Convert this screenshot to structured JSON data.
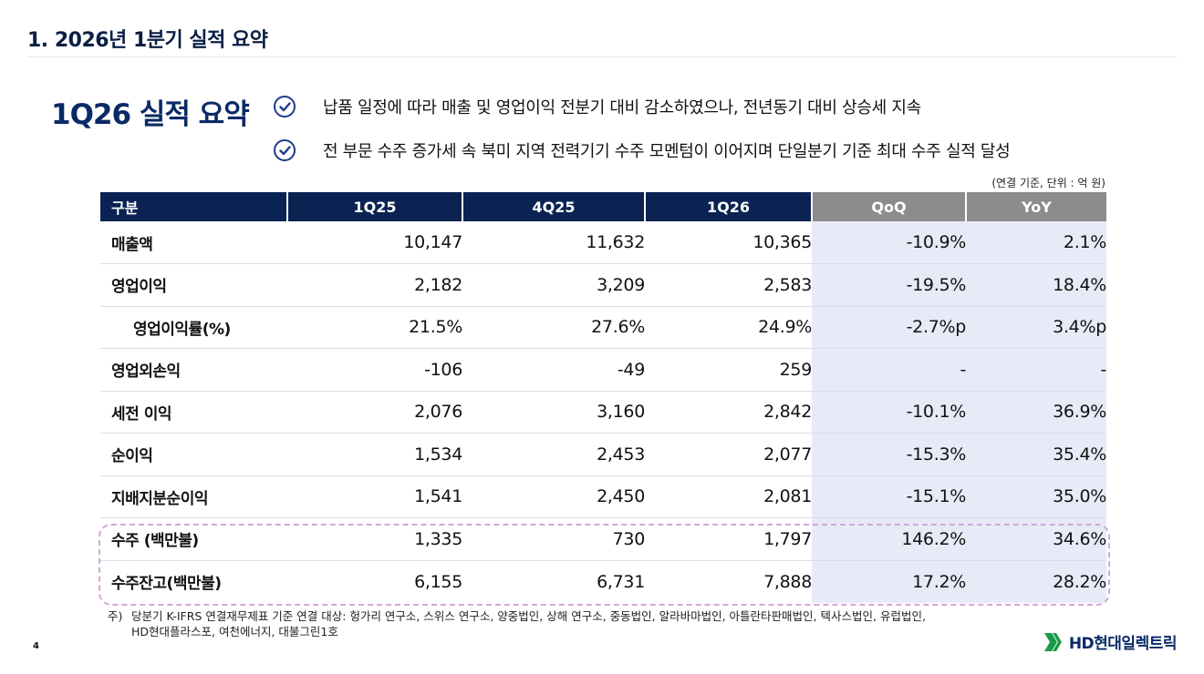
{
  "slide_title": "1. 2026년 1분기 실적 요약",
  "summary_heading": "1Q26 실적 요약",
  "bullets": [
    "납품 일정에 따라 매출 및 영업이익 전분기 대비 감소하였으나, 전년동기 대비 상승세 지속",
    "전 부문 수주 증가세 속 북미 지역 전력기기 수주 모멘텀이 이어지며 단일분기 기준 최대 수주 실적 달성"
  ],
  "unit_note": "(연결 기준, 단위 : 억 원)",
  "table": {
    "headers": [
      "구분",
      "1Q25",
      "4Q25",
      "1Q26",
      "QoQ",
      "YoY"
    ],
    "rows": [
      [
        "매출액",
        "10,147",
        "11,632",
        "10,365",
        "-10.9%",
        "2.1%"
      ],
      [
        "영업이익",
        "2,182",
        "3,209",
        "2,583",
        "-19.5%",
        "18.4%"
      ],
      [
        "영업이익률(%)",
        "21.5%",
        "27.6%",
        "24.9%",
        "-2.7%p",
        "3.4%p"
      ],
      [
        "영업외손익",
        "-106",
        "-49",
        "259",
        "-",
        "-"
      ],
      [
        "세전 이익",
        "2,076",
        "3,160",
        "2,842",
        "-10.1%",
        "36.9%"
      ],
      [
        "순이익",
        "1,534",
        "2,453",
        "2,077",
        "-15.3%",
        "35.4%"
      ],
      [
        "지배지분순이익",
        "1,541",
        "2,450",
        "2,081",
        "-15.1%",
        "35.0%"
      ],
      [
        "수주 (백만불)",
        "1,335",
        "730",
        "1,797",
        "146.2%",
        "34.6%"
      ],
      [
        "수주잔고(백만불)",
        "6,155",
        "6,731",
        "7,888",
        "17.2%",
        "28.2%"
      ]
    ]
  },
  "footnote": {
    "mark": "주)",
    "line1": "당분기 K-IFRS 연결재무제표 기준 연결 대상: 헝가리 연구소, 스위스 연구소, 양중법인, 상해 연구소, 중동법인, 알라바마법인, 아틀란타판매법인, 텍사스법인, 유럽법인,",
    "line2": "HD현대플라스포, 여천에너지, 대불그린1호"
  },
  "page_number": "4",
  "logo": {
    "name": "HD현대일렉트릭",
    "color": "#1a9a48"
  },
  "colors": {
    "navy": "#0b2353",
    "gray_header": "#8c8c8c",
    "highlight": "#e6ebf7",
    "dashed_box": "#d7a3da"
  }
}
